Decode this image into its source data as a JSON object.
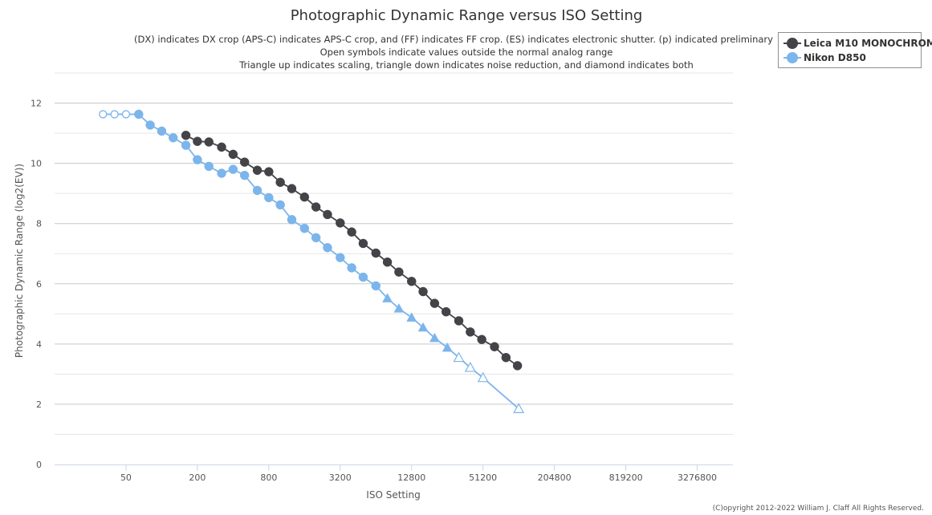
{
  "chart_data": {
    "type": "line",
    "title": "Photographic Dynamic Range versus ISO Setting",
    "subtitle": [
      "(DX) indicates DX crop (APS-C) indicates APS-C crop, and (FF) indicates FF crop. (ES) indicates electronic shutter. (p) indicated preliminary",
      "Open symbols indicate values outside the normal analog range",
      "Triangle up indicates scaling, triangle down indicates noise reduction, and diamond indicates both"
    ],
    "xlabel": "ISO Setting",
    "ylabel": "Photographic Dynamic Range (log2(EV))",
    "x_scale": "log2",
    "x_ticks": [
      50,
      200,
      800,
      3200,
      12800,
      51200,
      204800,
      819200,
      3276800
    ],
    "xlim": [
      12.5,
      6553600
    ],
    "ylim": [
      0,
      13
    ],
    "y_ticks": [
      0,
      2,
      4,
      6,
      8,
      10,
      12
    ],
    "grid": true,
    "legend_position": "top-right",
    "series": [
      {
        "name": "Leica M10 MONOCHROM",
        "color": "#434348",
        "marker": "circle",
        "points": [
          {
            "x": 160,
            "y": 10.93
          },
          {
            "x": 200,
            "y": 10.73
          },
          {
            "x": 250,
            "y": 10.71
          },
          {
            "x": 320,
            "y": 10.54
          },
          {
            "x": 400,
            "y": 10.3
          },
          {
            "x": 500,
            "y": 10.04
          },
          {
            "x": 640,
            "y": 9.77
          },
          {
            "x": 800,
            "y": 9.72
          },
          {
            "x": 1000,
            "y": 9.37
          },
          {
            "x": 1250,
            "y": 9.16
          },
          {
            "x": 1600,
            "y": 8.88
          },
          {
            "x": 2000,
            "y": 8.55
          },
          {
            "x": 2500,
            "y": 8.3
          },
          {
            "x": 3200,
            "y": 8.02
          },
          {
            "x": 4000,
            "y": 7.72
          },
          {
            "x": 5000,
            "y": 7.34
          },
          {
            "x": 6400,
            "y": 7.02
          },
          {
            "x": 8000,
            "y": 6.72
          },
          {
            "x": 10000,
            "y": 6.39
          },
          {
            "x": 12800,
            "y": 6.08
          },
          {
            "x": 16000,
            "y": 5.74
          },
          {
            "x": 20000,
            "y": 5.35
          },
          {
            "x": 25000,
            "y": 5.07
          },
          {
            "x": 32000,
            "y": 4.77
          },
          {
            "x": 40000,
            "y": 4.4
          },
          {
            "x": 50000,
            "y": 4.15
          },
          {
            "x": 64000,
            "y": 3.91
          },
          {
            "x": 80000,
            "y": 3.55
          },
          {
            "x": 100000,
            "y": 3.28
          }
        ]
      },
      {
        "name": "Nikon D850",
        "color": "#7cb5ec",
        "points": [
          {
            "x": 32,
            "y": 11.63,
            "marker": "circle-open"
          },
          {
            "x": 40,
            "y": 11.63,
            "marker": "circle-open"
          },
          {
            "x": 50,
            "y": 11.63,
            "marker": "circle-open"
          },
          {
            "x": 64,
            "y": 11.63,
            "marker": "circle"
          },
          {
            "x": 80,
            "y": 11.27,
            "marker": "circle"
          },
          {
            "x": 100,
            "y": 11.07,
            "marker": "circle"
          },
          {
            "x": 125,
            "y": 10.85,
            "marker": "circle"
          },
          {
            "x": 160,
            "y": 10.6,
            "marker": "circle"
          },
          {
            "x": 200,
            "y": 10.12,
            "marker": "circle"
          },
          {
            "x": 250,
            "y": 9.9,
            "marker": "circle"
          },
          {
            "x": 320,
            "y": 9.67,
            "marker": "circle"
          },
          {
            "x": 400,
            "y": 9.8,
            "marker": "circle"
          },
          {
            "x": 500,
            "y": 9.6,
            "marker": "circle"
          },
          {
            "x": 640,
            "y": 9.1,
            "marker": "circle"
          },
          {
            "x": 800,
            "y": 8.86,
            "marker": "circle"
          },
          {
            "x": 1000,
            "y": 8.62,
            "marker": "circle"
          },
          {
            "x": 1250,
            "y": 8.13,
            "marker": "circle"
          },
          {
            "x": 1600,
            "y": 7.84,
            "marker": "circle"
          },
          {
            "x": 2000,
            "y": 7.53,
            "marker": "circle"
          },
          {
            "x": 2500,
            "y": 7.2,
            "marker": "circle"
          },
          {
            "x": 3200,
            "y": 6.87,
            "marker": "circle"
          },
          {
            "x": 4000,
            "y": 6.53,
            "marker": "circle"
          },
          {
            "x": 5000,
            "y": 6.22,
            "marker": "circle"
          },
          {
            "x": 6400,
            "y": 5.93,
            "marker": "circle"
          },
          {
            "x": 8000,
            "y": 5.52,
            "marker": "triangle"
          },
          {
            "x": 10000,
            "y": 5.18,
            "marker": "triangle"
          },
          {
            "x": 12800,
            "y": 4.88,
            "marker": "triangle"
          },
          {
            "x": 16000,
            "y": 4.55,
            "marker": "triangle"
          },
          {
            "x": 20000,
            "y": 4.2,
            "marker": "triangle"
          },
          {
            "x": 25600,
            "y": 3.88,
            "marker": "triangle"
          },
          {
            "x": 32000,
            "y": 3.55,
            "marker": "triangle-open"
          },
          {
            "x": 40000,
            "y": 3.22,
            "marker": "triangle-open"
          },
          {
            "x": 51200,
            "y": 2.88,
            "marker": "triangle-open"
          },
          {
            "x": 102400,
            "y": 1.85,
            "marker": "triangle-open"
          }
        ]
      }
    ]
  },
  "legend": {
    "items": [
      {
        "label": "Leica M10 MONOCHROM",
        "color": "#434348"
      },
      {
        "label": "Nikon D850",
        "color": "#7cb5ec"
      }
    ]
  },
  "footer": {
    "copyright": "(C)opyright 2012-2022 William J. Claff All Rights Reserved."
  }
}
